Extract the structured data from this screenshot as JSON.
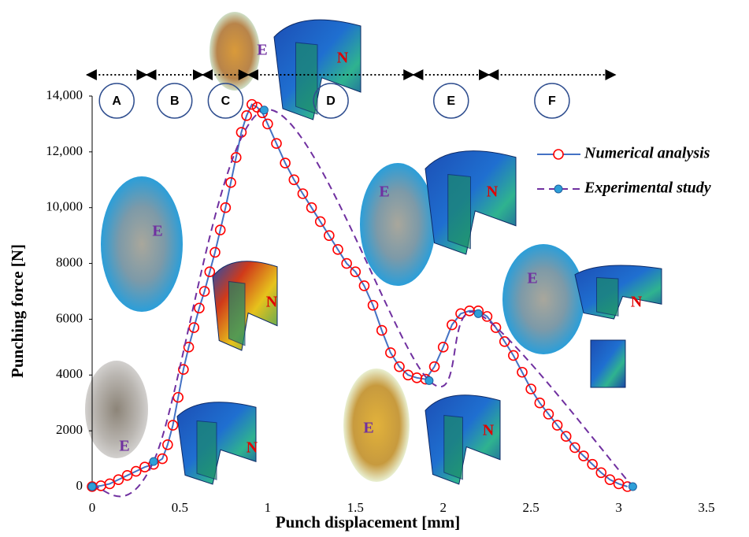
{
  "chart_data": {
    "type": "line",
    "xlabel": "Punch displacement [mm]",
    "ylabel": "Punching force [N]",
    "xlim": [
      0,
      3.5
    ],
    "xticks": [
      0,
      0.5,
      1,
      1.5,
      2,
      2.5,
      3,
      3.5
    ],
    "ylim": [
      0,
      14000
    ],
    "yticks": [
      0,
      2000,
      4000,
      6000,
      8000,
      {
        "value": 10000,
        "label": "10,000"
      },
      {
        "value": 12000,
        "label": "12,000"
      },
      {
        "value": 14000,
        "label": "14,000"
      }
    ],
    "legend": "upper right",
    "series": [
      {
        "name": "Numerical analysis",
        "color": "#4472c4",
        "marker_color": "#ff0000",
        "marker": "open-circle",
        "x": [
          0,
          0.05,
          0.1,
          0.15,
          0.2,
          0.25,
          0.3,
          0.35,
          0.4,
          0.43,
          0.46,
          0.49,
          0.52,
          0.55,
          0.58,
          0.61,
          0.64,
          0.67,
          0.7,
          0.73,
          0.76,
          0.79,
          0.82,
          0.85,
          0.88,
          0.91,
          0.94,
          0.97,
          1.0,
          1.05,
          1.1,
          1.15,
          1.2,
          1.25,
          1.3,
          1.35,
          1.4,
          1.45,
          1.5,
          1.55,
          1.6,
          1.65,
          1.7,
          1.75,
          1.8,
          1.85,
          1.9,
          1.95,
          2.0,
          2.05,
          2.1,
          2.15,
          2.2,
          2.25,
          2.3,
          2.35,
          2.4,
          2.45,
          2.5,
          2.55,
          2.6,
          2.65,
          2.7,
          2.75,
          2.8,
          2.85,
          2.9,
          2.95,
          3.0,
          3.05
        ],
        "values": [
          0,
          30,
          100,
          250,
          400,
          550,
          700,
          800,
          1000,
          1500,
          2200,
          3200,
          4200,
          5000,
          5700,
          6400,
          7000,
          7700,
          8400,
          9200,
          10000,
          10900,
          11800,
          12700,
          13300,
          13700,
          13600,
          13400,
          13000,
          12300,
          11600,
          11000,
          10500,
          10000,
          9500,
          9000,
          8500,
          8000,
          7700,
          7200,
          6500,
          5600,
          4800,
          4300,
          4000,
          3900,
          3850,
          4300,
          5000,
          5800,
          6200,
          6300,
          6300,
          6100,
          5700,
          5200,
          4700,
          4100,
          3500,
          3000,
          2600,
          2200,
          1800,
          1400,
          1100,
          800,
          500,
          250,
          100,
          0
        ]
      },
      {
        "name": "Experimental study",
        "color": "#7030a0",
        "marker_color": "#2e9fd8",
        "marker": "filled-circle",
        "dashed": true,
        "x": [
          0,
          0.35,
          0.98,
          1.92,
          2.2,
          3.08
        ],
        "values": [
          0,
          900,
          13500,
          3800,
          6200,
          0
        ]
      }
    ],
    "stages": [
      {
        "label": "A",
        "start": -0.03,
        "end": 0.31
      },
      {
        "label": "B",
        "start": 0.31,
        "end": 0.63
      },
      {
        "label": "C",
        "start": 0.63,
        "end": 0.89
      },
      {
        "label": "D",
        "start": 0.89,
        "end": 1.83
      },
      {
        "label": "E",
        "start": 1.83,
        "end": 2.26
      },
      {
        "label": "F",
        "start": 2.26,
        "end": 2.98
      }
    ],
    "insets": [
      {
        "photo": "E",
        "model": "N"
      },
      {
        "photo": "E",
        "model": "N"
      },
      {
        "photo": "E",
        "model": "N"
      },
      {
        "photo": "E",
        "model": "N"
      },
      {
        "photo": "E",
        "model": "N"
      },
      {
        "photo": "E",
        "model": "N"
      }
    ]
  }
}
